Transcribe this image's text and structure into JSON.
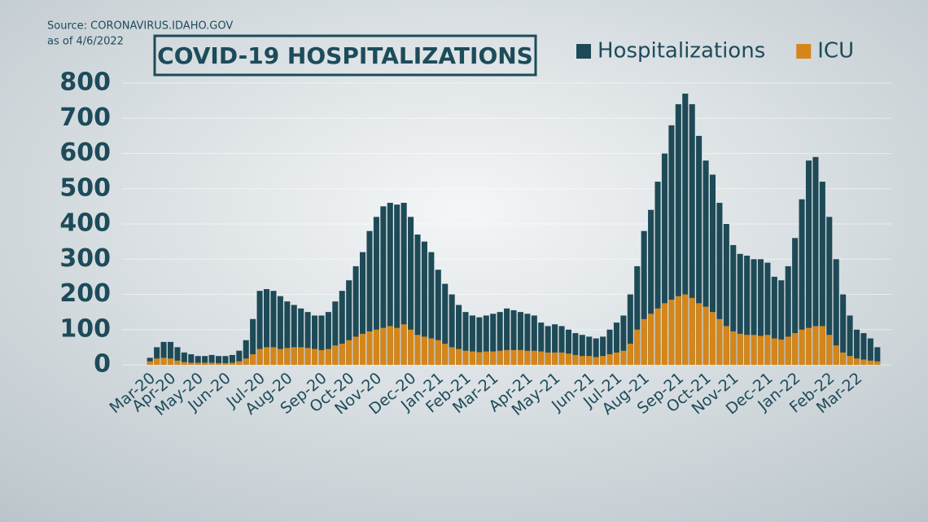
{
  "chart_data": {
    "type": "bar",
    "title": "COVID-19 HOSPITALIZATIONS",
    "source": "Source: CORONAVIRUS.IDAHO.GOV",
    "date_note": "as of 4/6/2022",
    "categories": [
      "Mar-20",
      null,
      null,
      "Apr-20",
      null,
      null,
      null,
      "May-20",
      null,
      null,
      null,
      "Jun-20",
      null,
      null,
      null,
      null,
      "Jul-20",
      null,
      null,
      null,
      "Aug-20",
      null,
      null,
      null,
      null,
      "Sep-20",
      null,
      null,
      null,
      "Oct-20",
      null,
      null,
      null,
      "Nov-20",
      null,
      null,
      null,
      null,
      "Dec-20",
      null,
      null,
      null,
      "Jan-21",
      null,
      null,
      null,
      "Feb-21",
      null,
      null,
      null,
      "Mar-21",
      null,
      null,
      null,
      null,
      "Apr-21",
      null,
      null,
      null,
      "May-21",
      null,
      null,
      null,
      null,
      "Jun-21",
      null,
      null,
      null,
      "Jul-21",
      null,
      null,
      null,
      "Aug-21",
      null,
      null,
      null,
      null,
      "Sep-21",
      null,
      null,
      null,
      "Oct-21",
      null,
      null,
      null,
      "Nov-21",
      null,
      null,
      null,
      null,
      "Dec-21",
      null,
      null,
      null,
      "Jan-22",
      null,
      null,
      null,
      null,
      "Feb-22",
      null,
      null,
      null,
      "Mar-22",
      null,
      null,
      null
    ],
    "series": [
      {
        "name": "Hospitalizations",
        "color": "#1e4a57",
        "values": [
          20,
          50,
          65,
          65,
          50,
          35,
          30,
          25,
          25,
          28,
          25,
          25,
          28,
          40,
          70,
          130,
          210,
          215,
          210,
          195,
          180,
          170,
          160,
          150,
          140,
          140,
          150,
          180,
          210,
          240,
          280,
          320,
          380,
          420,
          450,
          460,
          455,
          460,
          420,
          370,
          350,
          320,
          270,
          230,
          200,
          170,
          150,
          140,
          135,
          140,
          145,
          150,
          160,
          155,
          150,
          145,
          140,
          120,
          110,
          115,
          110,
          100,
          90,
          85,
          80,
          75,
          80,
          100,
          120,
          140,
          200,
          280,
          380,
          440,
          520,
          600,
          680,
          740,
          770,
          740,
          650,
          580,
          540,
          460,
          400,
          340,
          315,
          310,
          300,
          300,
          290,
          250,
          240,
          280,
          360,
          470,
          580,
          590,
          520,
          420,
          300,
          200,
          140,
          100,
          90,
          75,
          50
        ]
      },
      {
        "name": "ICU",
        "color": "#d4861a",
        "values": [
          10,
          18,
          20,
          18,
          12,
          8,
          6,
          6,
          6,
          6,
          5,
          5,
          6,
          10,
          18,
          30,
          45,
          50,
          50,
          45,
          48,
          50,
          50,
          48,
          45,
          42,
          45,
          55,
          60,
          70,
          80,
          88,
          95,
          100,
          105,
          110,
          105,
          115,
          100,
          85,
          80,
          75,
          70,
          60,
          50,
          45,
          40,
          38,
          36,
          38,
          38,
          40,
          42,
          42,
          42,
          40,
          40,
          38,
          35,
          35,
          35,
          32,
          28,
          25,
          25,
          22,
          25,
          30,
          35,
          40,
          60,
          100,
          130,
          145,
          160,
          175,
          185,
          195,
          200,
          190,
          175,
          165,
          150,
          130,
          110,
          95,
          88,
          85,
          85,
          82,
          85,
          75,
          72,
          80,
          90,
          100,
          105,
          110,
          110,
          85,
          55,
          35,
          25,
          18,
          15,
          12,
          10
        ]
      }
    ],
    "ylim": [
      0,
      800
    ],
    "yticks": [
      0,
      100,
      200,
      300,
      400,
      500,
      600,
      700,
      800
    ],
    "grid": true
  }
}
